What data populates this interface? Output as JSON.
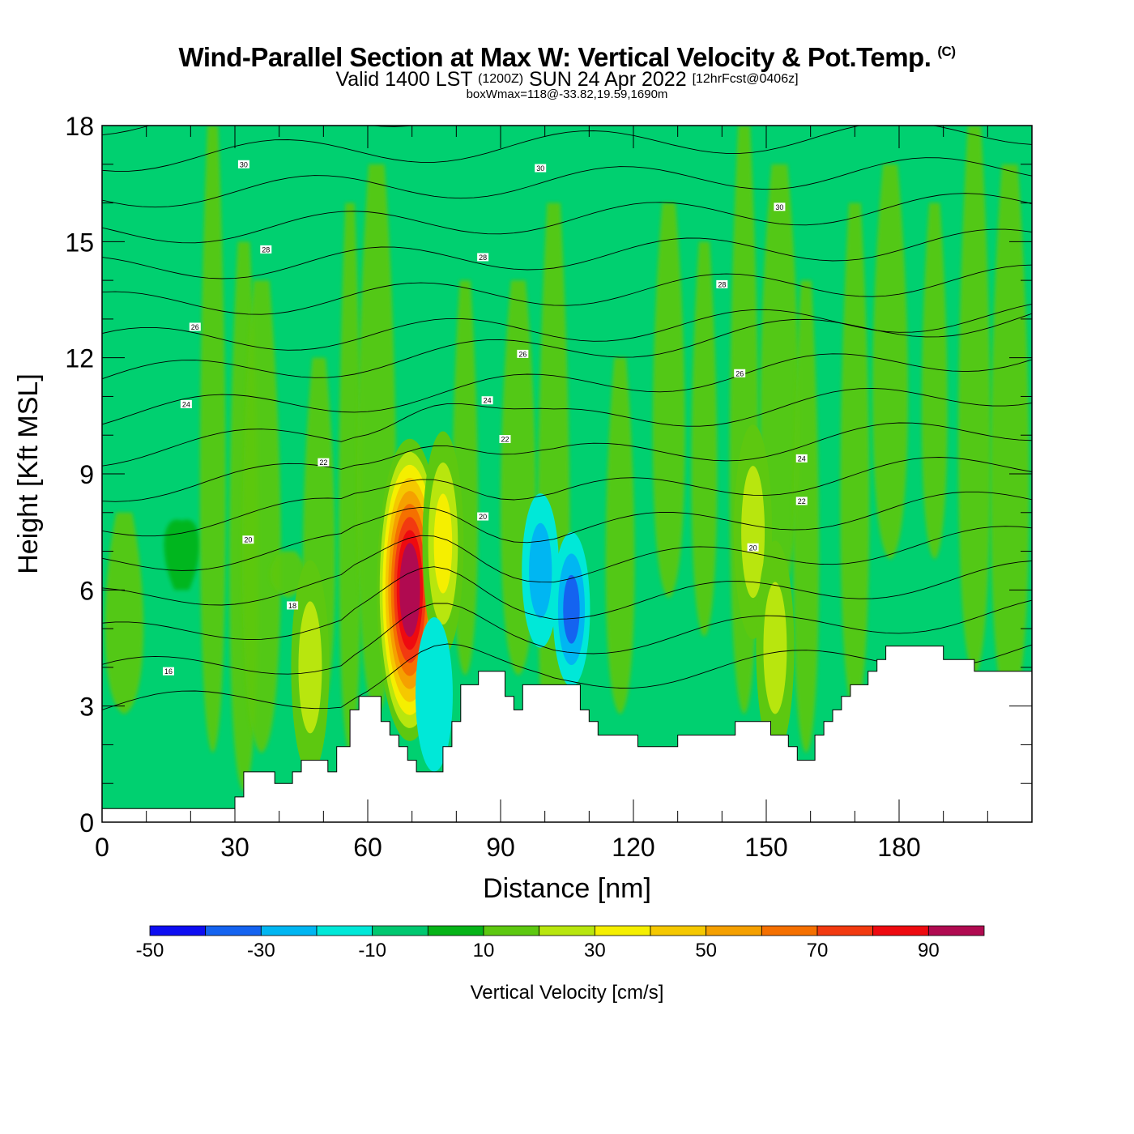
{
  "header": {
    "title": "Wind-Parallel Section at Max W: Vertical Velocity & Pot.Temp.",
    "title_copyright": "(C)",
    "valid_text": "Valid 1400 LST",
    "valid_utc": "(1200Z)",
    "valid_date": "SUN 24 Apr 2022",
    "forecast": "[12hrFcst@0406z]",
    "box_info": "boxWmax=118@-33.82,19.59,1690m"
  },
  "chart_data": {
    "type": "heatmap",
    "title": "Wind-Parallel Section at Max W: Vertical Velocity & Pot.Temp.",
    "xlabel": "Distance [nm]",
    "ylabel": "Height [Kft MSL]",
    "xlim": [
      0,
      210
    ],
    "ylim": [
      0,
      18
    ],
    "x_ticks": [
      0,
      30,
      60,
      90,
      120,
      150,
      180
    ],
    "y_ticks": [
      0,
      3,
      6,
      9,
      12,
      15,
      18
    ],
    "colorbar": {
      "label": "Vertical Velocity [cm/s]",
      "bins": [
        -50,
        -40,
        -30,
        -20,
        -10,
        0,
        10,
        20,
        30,
        40,
        50,
        60,
        70,
        80,
        90,
        100
      ],
      "tick_labels": [
        "-50",
        "-30",
        "-10",
        "10",
        "30",
        "50",
        "70",
        "90"
      ],
      "colors": [
        "#0d0df2",
        "#1463f0",
        "#00b6f2",
        "#00e8d8",
        "#00c870",
        "#06b418",
        "#5dc810",
        "#b8e60e",
        "#f5ef00",
        "#f5c800",
        "#f5a000",
        "#f57000",
        "#f23a10",
        "#ee0a10",
        "#b00a50"
      ],
      "background_value": 0
    },
    "features": [
      {
        "kind": "updraft",
        "x": 69.5,
        "y": 6.0,
        "w_max": 118
      },
      {
        "kind": "updraft",
        "x": 77,
        "y": 7.2,
        "w_max": 40
      },
      {
        "kind": "updraft",
        "x": 47,
        "y": 4.0,
        "w_max": 32
      },
      {
        "kind": "updraft",
        "x": 147,
        "y": 7.5,
        "w_max": 30
      },
      {
        "kind": "updraft",
        "x": 152,
        "y": 4.5,
        "w_max": 28
      },
      {
        "kind": "downdraft",
        "x": 106,
        "y": 5.5,
        "w_min": -37
      },
      {
        "kind": "downdraft",
        "x": 99,
        "y": 6.5,
        "w_min": -32
      },
      {
        "kind": "downdraft",
        "x": 75,
        "y": 3.3,
        "w_min": -20
      }
    ],
    "pot_temp_contours": {
      "label_unit": "°C",
      "labels": [
        {
          "text": "30",
          "x": 32,
          "y": 17.0
        },
        {
          "text": "30",
          "x": 99,
          "y": 16.9
        },
        {
          "text": "30",
          "x": 153,
          "y": 15.9
        },
        {
          "text": "28",
          "x": 37,
          "y": 14.8
        },
        {
          "text": "28",
          "x": 86,
          "y": 14.6
        },
        {
          "text": "28",
          "x": 140,
          "y": 13.9
        },
        {
          "text": "26",
          "x": 21,
          "y": 12.8
        },
        {
          "text": "26",
          "x": 95,
          "y": 12.1
        },
        {
          "text": "26",
          "x": 144,
          "y": 11.6
        },
        {
          "text": "24",
          "x": 19,
          "y": 10.8
        },
        {
          "text": "24",
          "x": 87,
          "y": 10.9
        },
        {
          "text": "24",
          "x": 158,
          "y": 9.4
        },
        {
          "text": "22",
          "x": 50,
          "y": 9.3
        },
        {
          "text": "22",
          "x": 91,
          "y": 9.9
        },
        {
          "text": "22",
          "x": 158,
          "y": 8.3
        },
        {
          "text": "20",
          "x": 33,
          "y": 7.3
        },
        {
          "text": "20",
          "x": 86,
          "y": 7.9
        },
        {
          "text": "20",
          "x": 147,
          "y": 7.1
        },
        {
          "text": "18",
          "x": 43,
          "y": 5.6
        },
        {
          "text": "16",
          "x": 15,
          "y": 3.9
        }
      ]
    },
    "terrain_profile": [
      [
        0,
        0.35
      ],
      [
        30,
        0.35
      ],
      [
        30,
        0.65
      ],
      [
        32,
        0.65
      ],
      [
        32,
        1.3
      ],
      [
        39,
        1.3
      ],
      [
        39,
        1.0
      ],
      [
        43,
        1.0
      ],
      [
        43,
        1.3
      ],
      [
        45,
        1.3
      ],
      [
        45,
        1.6
      ],
      [
        51,
        1.6
      ],
      [
        51,
        1.3
      ],
      [
        53,
        1.3
      ],
      [
        53,
        1.95
      ],
      [
        56,
        1.95
      ],
      [
        56,
        2.9
      ],
      [
        58,
        2.9
      ],
      [
        58,
        3.25
      ],
      [
        63,
        3.25
      ],
      [
        63,
        2.6
      ],
      [
        65,
        2.6
      ],
      [
        65,
        2.25
      ],
      [
        67,
        2.25
      ],
      [
        67,
        1.95
      ],
      [
        69,
        1.95
      ],
      [
        69,
        1.6
      ],
      [
        71,
        1.6
      ],
      [
        71,
        1.3
      ],
      [
        77,
        1.3
      ],
      [
        77,
        1.95
      ],
      [
        79,
        1.95
      ],
      [
        79,
        2.6
      ],
      [
        81,
        2.6
      ],
      [
        81,
        3.55
      ],
      [
        85,
        3.55
      ],
      [
        85,
        3.9
      ],
      [
        91,
        3.9
      ],
      [
        91,
        3.25
      ],
      [
        93,
        3.25
      ],
      [
        93,
        2.9
      ],
      [
        95,
        2.9
      ],
      [
        95,
        3.55
      ],
      [
        108,
        3.55
      ],
      [
        108,
        2.9
      ],
      [
        110,
        2.9
      ],
      [
        110,
        2.6
      ],
      [
        112,
        2.6
      ],
      [
        112,
        2.25
      ],
      [
        121,
        2.25
      ],
      [
        121,
        1.95
      ],
      [
        130,
        1.95
      ],
      [
        130,
        2.25
      ],
      [
        143,
        2.25
      ],
      [
        143,
        2.6
      ],
      [
        151,
        2.6
      ],
      [
        151,
        2.25
      ],
      [
        155,
        2.25
      ],
      [
        155,
        1.95
      ],
      [
        157,
        1.95
      ],
      [
        157,
        1.6
      ],
      [
        161,
        1.6
      ],
      [
        161,
        2.25
      ],
      [
        163,
        2.25
      ],
      [
        163,
        2.6
      ],
      [
        165,
        2.6
      ],
      [
        165,
        2.9
      ],
      [
        167,
        2.9
      ],
      [
        167,
        3.25
      ],
      [
        169,
        3.25
      ],
      [
        169,
        3.55
      ],
      [
        173,
        3.55
      ],
      [
        173,
        3.9
      ],
      [
        175,
        3.9
      ],
      [
        175,
        4.2
      ],
      [
        177,
        4.2
      ],
      [
        177,
        4.55
      ],
      [
        190,
        4.55
      ],
      [
        190,
        4.2
      ],
      [
        197,
        4.2
      ],
      [
        197,
        3.9
      ],
      [
        210,
        3.9
      ]
    ]
  }
}
